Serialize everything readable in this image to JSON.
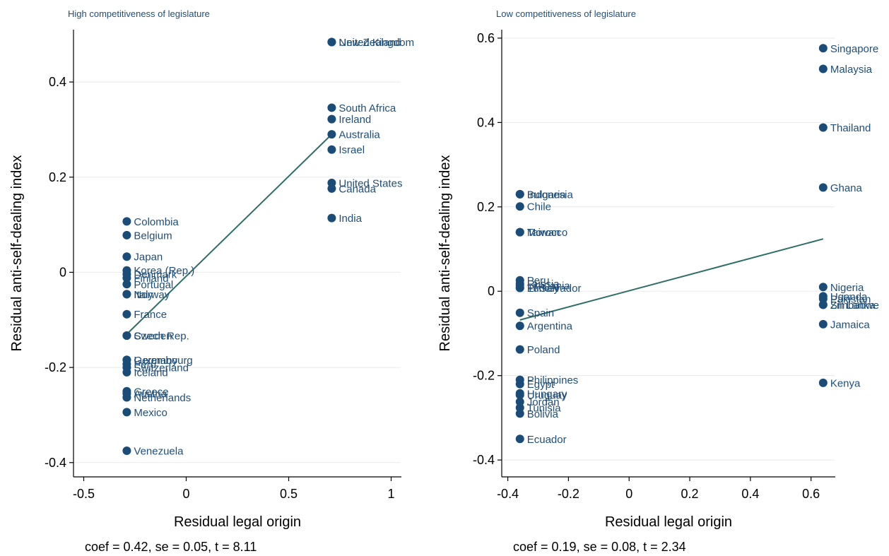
{
  "colors": {
    "marker": "#1b4c78",
    "label": "#1f4e79",
    "fit_line": "#2e6e66",
    "grid": "#eaeaea",
    "axis": "#000000"
  },
  "chart_data": [
    {
      "type": "scatter",
      "title": "High competitiveness of legislature",
      "xlabel": "Residual legal origin",
      "ylabel": "Residual anti-self-dealing index",
      "note": "coef = 0.42, se = 0.05, t = 8.11",
      "xlim": [
        -0.55,
        1.05
      ],
      "ylim": [
        -0.43,
        0.51
      ],
      "xticks": [
        -0.5,
        0,
        0.5,
        1
      ],
      "xtick_labels": [
        "-0.5",
        "0",
        "0.5",
        "1"
      ],
      "yticks": [
        -0.4,
        -0.2,
        0,
        0.2,
        0.4
      ],
      "ytick_labels": [
        "-0.4",
        "-0.2",
        "0",
        "0.2",
        "0.4"
      ],
      "grid": true,
      "fit_line": {
        "x": [
          -0.29,
          0.71
        ],
        "y": [
          -0.13,
          0.29
        ]
      },
      "points": [
        {
          "label": "New Zealand",
          "x": 0.71,
          "y": 0.484
        },
        {
          "label": "United Kingdom",
          "x": 0.71,
          "y": 0.484
        },
        {
          "label": "South Africa",
          "x": 0.71,
          "y": 0.346
        },
        {
          "label": "Ireland",
          "x": 0.71,
          "y": 0.322
        },
        {
          "label": "Australia",
          "x": 0.71,
          "y": 0.29
        },
        {
          "label": "Israel",
          "x": 0.71,
          "y": 0.258
        },
        {
          "label": "United States",
          "x": 0.71,
          "y": 0.188
        },
        {
          "label": "Canada",
          "x": 0.71,
          "y": 0.176
        },
        {
          "label": "India",
          "x": 0.71,
          "y": 0.114
        },
        {
          "label": "Colombia",
          "x": -0.29,
          "y": 0.107
        },
        {
          "label": "Belgium",
          "x": -0.29,
          "y": 0.078
        },
        {
          "label": "Japan",
          "x": -0.29,
          "y": 0.033
        },
        {
          "label": "Korea (Rep.)",
          "x": -0.29,
          "y": 0.004
        },
        {
          "label": "Denmark",
          "x": -0.29,
          "y": -0.004
        },
        {
          "label": "Finland",
          "x": -0.29,
          "y": -0.012
        },
        {
          "label": "Portugal",
          "x": -0.29,
          "y": -0.025
        },
        {
          "label": "Italy",
          "x": -0.29,
          "y": -0.046
        },
        {
          "label": "Norway",
          "x": -0.29,
          "y": -0.046
        },
        {
          "label": "France",
          "x": -0.29,
          "y": -0.088
        },
        {
          "label": "Sweden",
          "x": -0.29,
          "y": -0.133
        },
        {
          "label": "Czech Rep.",
          "x": -0.29,
          "y": -0.133
        },
        {
          "label": "Germany",
          "x": -0.29,
          "y": -0.184
        },
        {
          "label": "Luxembourg",
          "x": -0.29,
          "y": -0.184
        },
        {
          "label": "Peru",
          "x": -0.29,
          "y": -0.193
        },
        {
          "label": "Switzerland",
          "x": -0.29,
          "y": -0.2
        },
        {
          "label": "Iceland",
          "x": -0.29,
          "y": -0.21
        },
        {
          "label": "Greece",
          "x": -0.29,
          "y": -0.25
        },
        {
          "label": "Austria",
          "x": -0.29,
          "y": -0.255
        },
        {
          "label": "Netherlands",
          "x": -0.29,
          "y": -0.263
        },
        {
          "label": "Mexico",
          "x": -0.29,
          "y": -0.294
        },
        {
          "label": "Venezuela",
          "x": -0.29,
          "y": -0.375
        }
      ]
    },
    {
      "type": "scatter",
      "title": "Low competitiveness of legislature",
      "xlabel": "Residual legal origin",
      "ylabel": "Residual anti-self-dealing index",
      "note": "coef = 0.19, se = 0.08, t = 2.34",
      "xlim": [
        -0.42,
        0.68
      ],
      "ylim": [
        -0.44,
        0.62
      ],
      "xticks": [
        -0.4,
        -0.2,
        0,
        0.2,
        0.4,
        0.6
      ],
      "xtick_labels": [
        "-0.4",
        "-0.2",
        "0",
        "0.2",
        "0.4",
        "0.6"
      ],
      "yticks": [
        -0.4,
        -0.2,
        0,
        0.2,
        0.4,
        0.6
      ],
      "ytick_labels": [
        "-0.4",
        "-0.2",
        "0",
        "0.2",
        "0.4",
        "0.6"
      ],
      "grid": true,
      "fit_line": {
        "x": [
          -0.36,
          0.64
        ],
        "y": [
          -0.068,
          0.124
        ]
      },
      "points": [
        {
          "label": "Singapore",
          "x": 0.64,
          "y": 0.576
        },
        {
          "label": "Malaysia",
          "x": 0.64,
          "y": 0.527
        },
        {
          "label": "Thailand",
          "x": 0.64,
          "y": 0.388
        },
        {
          "label": "Ghana",
          "x": 0.64,
          "y": 0.246
        },
        {
          "label": "Nigeria",
          "x": 0.64,
          "y": 0.01
        },
        {
          "label": "Uganda",
          "x": 0.64,
          "y": -0.012
        },
        {
          "label": "Pakistan",
          "x": 0.64,
          "y": -0.018
        },
        {
          "label": "Zimbabwe",
          "x": 0.64,
          "y": -0.032
        },
        {
          "label": "Sri Lanka",
          "x": 0.64,
          "y": -0.032
        },
        {
          "label": "Jamaica",
          "x": 0.64,
          "y": -0.078
        },
        {
          "label": "Kenya",
          "x": 0.64,
          "y": -0.217
        },
        {
          "label": "Indonesia",
          "x": -0.36,
          "y": 0.23
        },
        {
          "label": "Bulgaria",
          "x": -0.36,
          "y": 0.23
        },
        {
          "label": "Chile",
          "x": -0.36,
          "y": 0.201
        },
        {
          "label": "Morocco",
          "x": -0.36,
          "y": 0.14
        },
        {
          "label": "Taiwan",
          "x": -0.36,
          "y": 0.14
        },
        {
          "label": "Peru",
          "x": -0.36,
          "y": 0.026
        },
        {
          "label": "Russia",
          "x": -0.36,
          "y": 0.018
        },
        {
          "label": "Lithuania",
          "x": -0.36,
          "y": 0.014
        },
        {
          "label": "Turkey",
          "x": -0.36,
          "y": 0.008
        },
        {
          "label": "El Salvador",
          "x": -0.36,
          "y": 0.008
        },
        {
          "label": "Spain",
          "x": -0.36,
          "y": -0.051
        },
        {
          "label": "Argentina",
          "x": -0.36,
          "y": -0.082
        },
        {
          "label": "Poland",
          "x": -0.36,
          "y": -0.138
        },
        {
          "label": "Philippines",
          "x": -0.36,
          "y": -0.21
        },
        {
          "label": "Egypt",
          "x": -0.36,
          "y": -0.22
        },
        {
          "label": "Hungary",
          "x": -0.36,
          "y": -0.242
        },
        {
          "label": "Uruguay",
          "x": -0.36,
          "y": -0.246
        },
        {
          "label": "Jordan",
          "x": -0.36,
          "y": -0.262
        },
        {
          "label": "Tunisia",
          "x": -0.36,
          "y": -0.276
        },
        {
          "label": "Bolivia",
          "x": -0.36,
          "y": -0.29
        },
        {
          "label": "Ecuador",
          "x": -0.36,
          "y": -0.35
        }
      ]
    }
  ]
}
